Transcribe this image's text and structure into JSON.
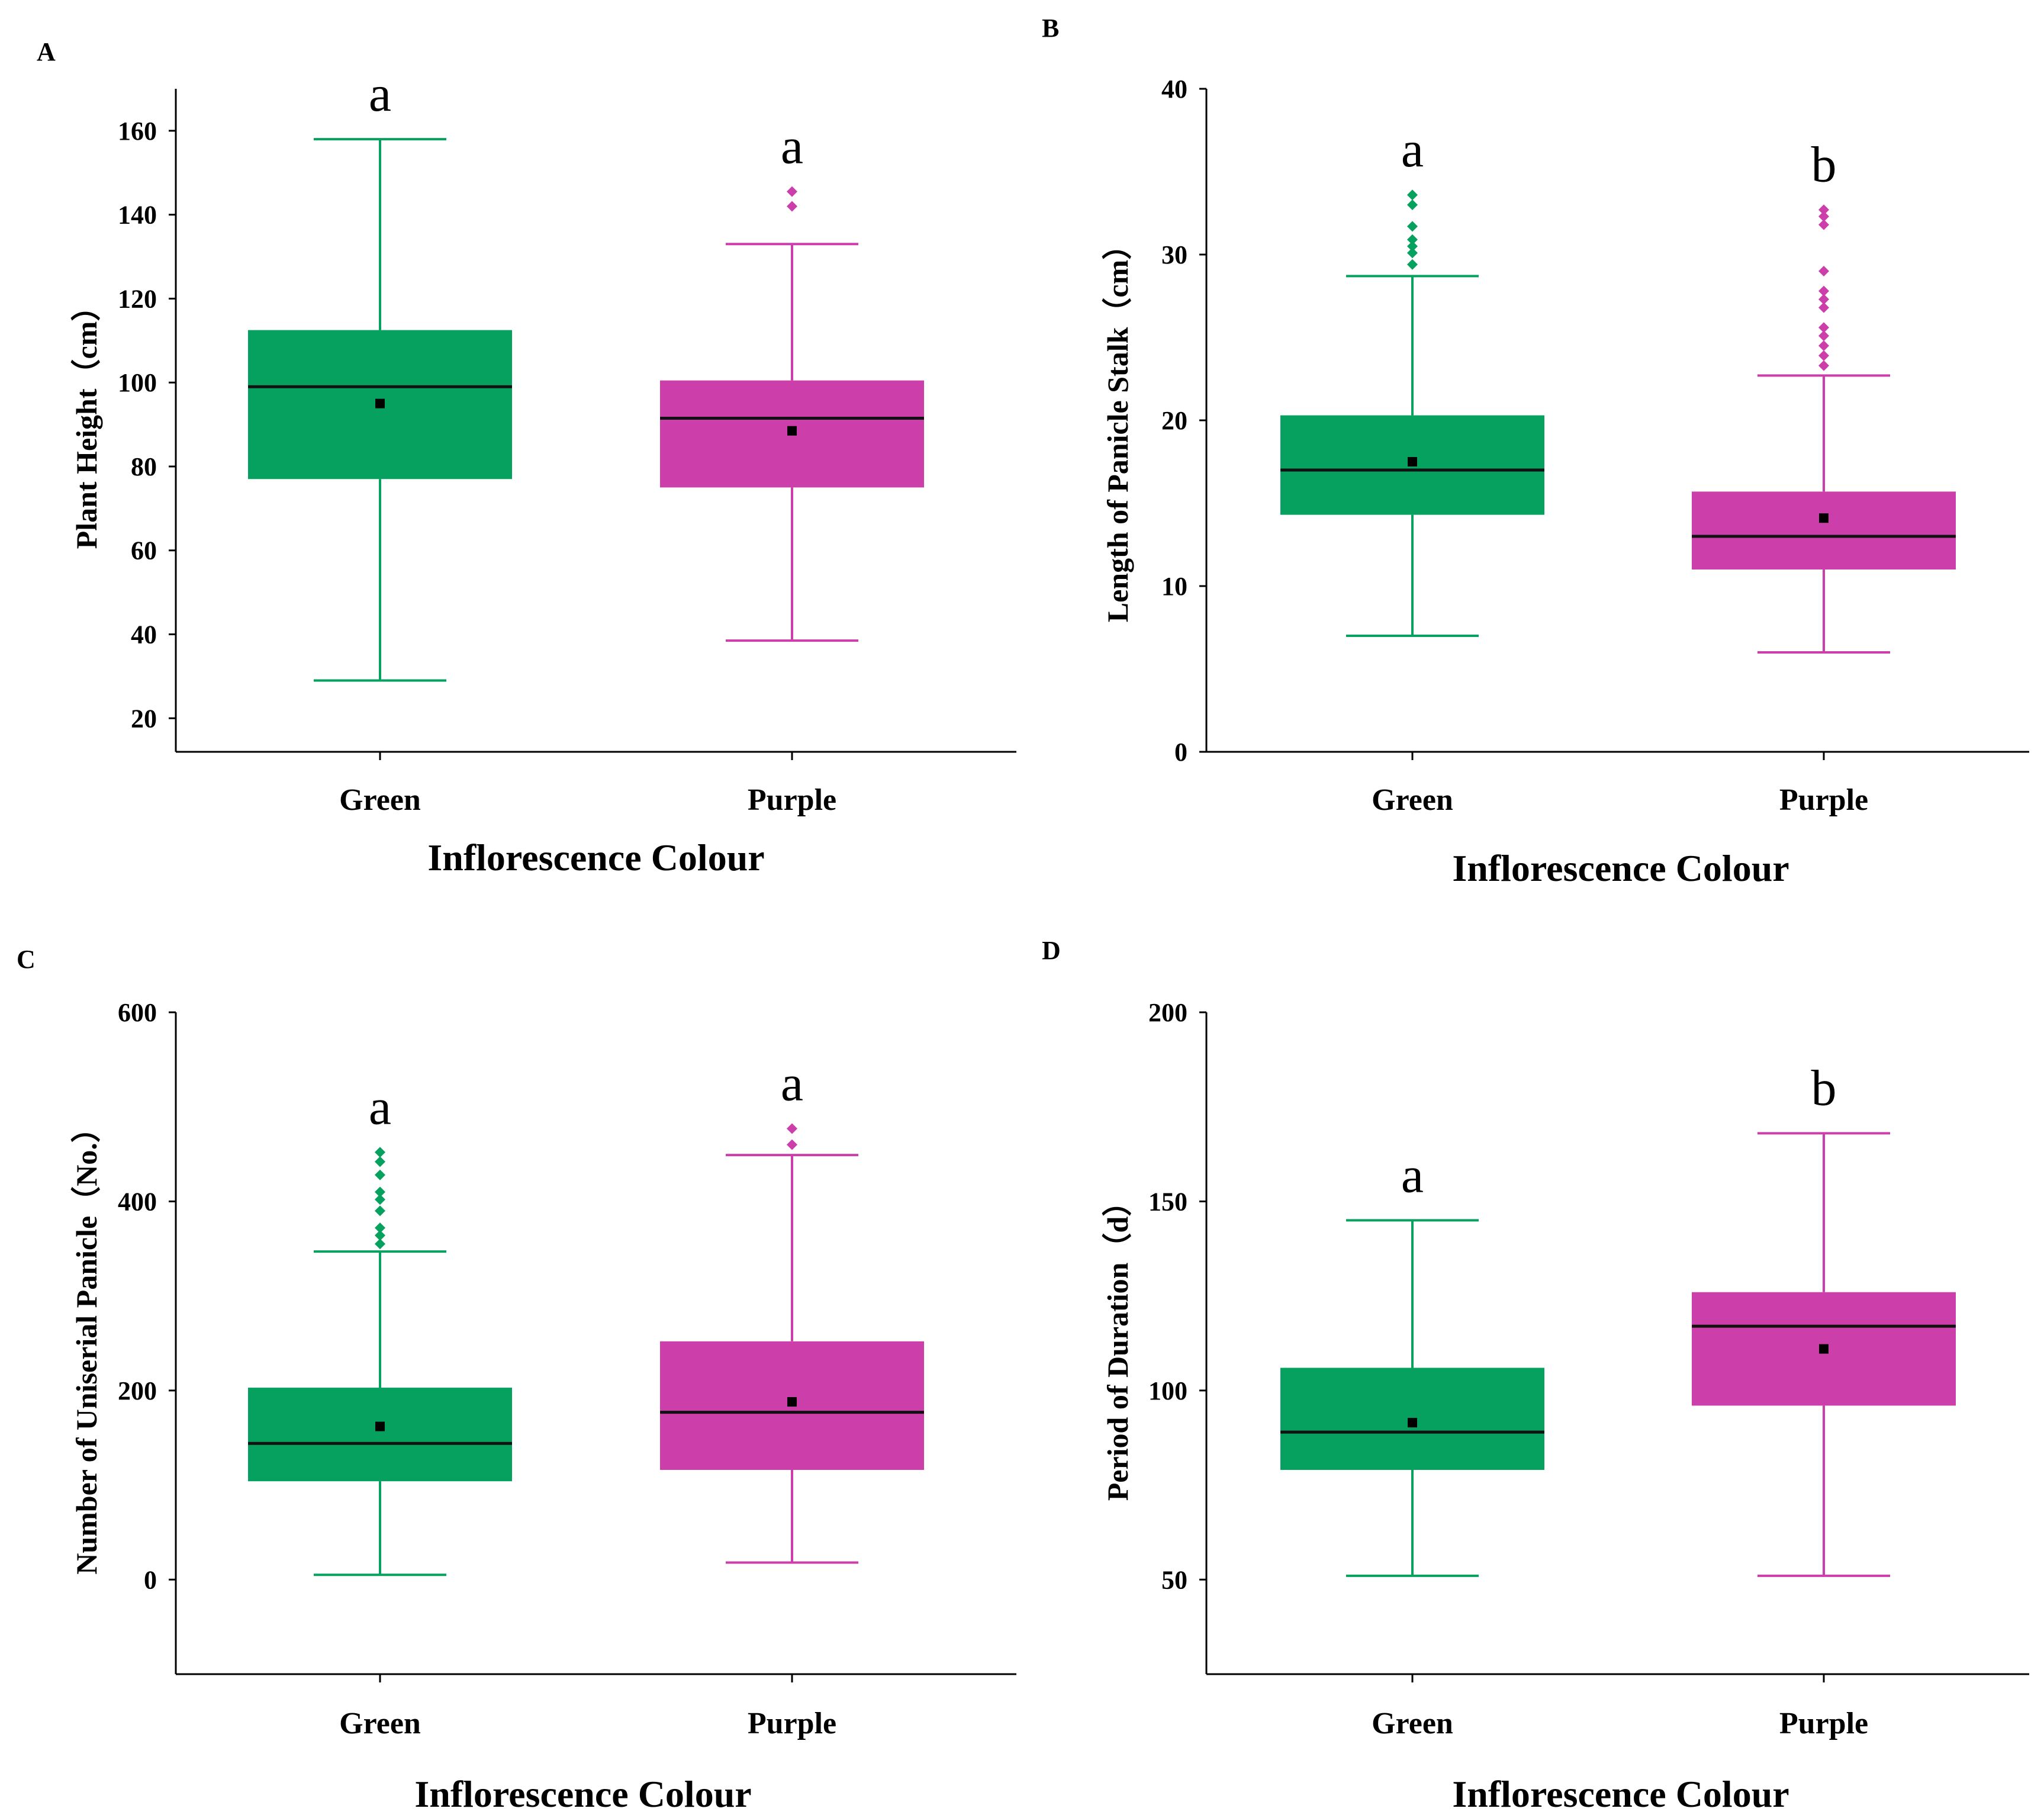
{
  "colors": {
    "green": "#06a05f",
    "purple": "#cc3ea9",
    "median": "#111111",
    "mean": "#000000"
  },
  "chart_data": [
    {
      "panel": "A",
      "type": "box",
      "xlabel": "Inflorescence Colour",
      "ylabel": "Plant Height（cm）",
      "ylim": [
        12,
        170
      ],
      "yticks": [
        20,
        40,
        60,
        80,
        100,
        120,
        140,
        160
      ],
      "categories": [
        "Green",
        "Purple"
      ],
      "boxes": [
        {
          "name": "Green",
          "color": "green",
          "whisker_low": 29,
          "q1": 77,
          "median": 99,
          "q3": 112.5,
          "whisker_high": 158,
          "mean": 95,
          "outliers": [],
          "sig": "a"
        },
        {
          "name": "Purple",
          "color": "purple",
          "whisker_low": 38.5,
          "q1": 75,
          "median": 91.5,
          "q3": 100.5,
          "whisker_high": 133,
          "mean": 88.5,
          "outliers": [
            142,
            145.5
          ],
          "sig": "a"
        }
      ]
    },
    {
      "panel": "B",
      "type": "box",
      "xlabel": "Inflorescence Colour",
      "ylabel": "Length of Panicle Stalk（cm）",
      "ylim": [
        0,
        40
      ],
      "yticks": [
        0,
        10,
        20,
        30,
        40
      ],
      "categories": [
        "Green",
        "Purple"
      ],
      "boxes": [
        {
          "name": "Green",
          "color": "green",
          "whisker_low": 7,
          "q1": 14.3,
          "median": 17,
          "q3": 20.3,
          "whisker_high": 28.7,
          "mean": 17.5,
          "outliers": [
            29.4,
            30.1,
            30.5,
            30.9,
            31.7,
            33,
            33.6
          ],
          "sig": "a"
        },
        {
          "name": "Purple",
          "color": "purple",
          "whisker_low": 6,
          "q1": 11,
          "median": 13,
          "q3": 15.7,
          "whisker_high": 22.7,
          "mean": 14.1,
          "outliers": [
            23.3,
            23.9,
            24.5,
            25.1,
            25.6,
            26.8,
            27.3,
            27.8,
            29,
            31.8,
            32.3,
            32.7
          ],
          "sig": "b"
        }
      ]
    },
    {
      "panel": "C",
      "type": "box",
      "xlabel": "Inflorescence Colour",
      "ylabel": "Number of Uniserial Panicle（No.）",
      "ylim": [
        -100,
        600
      ],
      "yticks": [
        0,
        200,
        400,
        600
      ],
      "categories": [
        "Green",
        "Purple"
      ],
      "boxes": [
        {
          "name": "Green",
          "color": "green",
          "whisker_low": 5,
          "q1": 104,
          "median": 144,
          "q3": 203,
          "whisker_high": 347,
          "mean": 162,
          "outliers": [
            355,
            364,
            372,
            390,
            402,
            410,
            428,
            442,
            452
          ],
          "sig": "a"
        },
        {
          "name": "Purple",
          "color": "purple",
          "whisker_low": 18,
          "q1": 116,
          "median": 177,
          "q3": 252,
          "whisker_high": 449,
          "mean": 188,
          "outliers": [
            460,
            477
          ],
          "sig": "a"
        }
      ]
    },
    {
      "panel": "D",
      "type": "box",
      "xlabel": "Inflorescence Colour",
      "ylabel": "Period of Duration（d）",
      "ylim": [
        25,
        200
      ],
      "yticks": [
        50,
        100,
        150,
        200
      ],
      "categories": [
        "Green",
        "Purple"
      ],
      "boxes": [
        {
          "name": "Green",
          "color": "green",
          "whisker_low": 51,
          "q1": 79,
          "median": 89,
          "q3": 106,
          "whisker_high": 145,
          "mean": 91.5,
          "outliers": [],
          "sig": "a"
        },
        {
          "name": "Purple",
          "color": "purple",
          "whisker_low": 51,
          "q1": 96,
          "median": 117,
          "q3": 126,
          "whisker_high": 168,
          "mean": 111,
          "outliers": [],
          "sig": "b"
        }
      ]
    }
  ]
}
